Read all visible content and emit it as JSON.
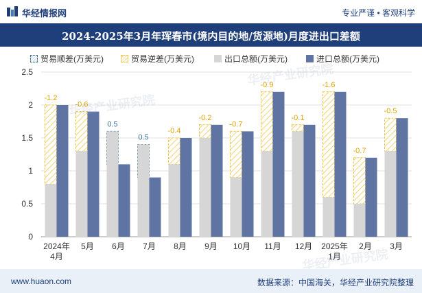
{
  "header": {
    "brand": "华经情报网",
    "tagline": "专业严谨 • 客观科学"
  },
  "title": "2024-2025年3月年珲春市(境内目的地/货源地)月度进出口差额",
  "legend": {
    "surplus": "贸易顺差(万美元)",
    "deficit": "贸易逆差(万美元)",
    "export": "出口总额(万美元)",
    "import": "进口总额(万美元)"
  },
  "watermark": "华经产业研究院",
  "footer": {
    "site": "www.huaon.com",
    "source": "数据来源：中国海关，华经产业研究院整理"
  },
  "colors": {
    "export": "#d6d6d6",
    "import": "#5f74a3",
    "surplus": "#3d6e96",
    "deficit": "#f0c23a",
    "titlebar": "#1f3f7a"
  },
  "chart_data": {
    "type": "bar",
    "categories": [
      "2024年\n4月",
      "5月",
      "6月",
      "7月",
      "8月",
      "9月",
      "10月",
      "11月",
      "12月",
      "2025年\n1月",
      "2月",
      "3月"
    ],
    "series": [
      {
        "name": "出口总额(万美元)",
        "values": [
          0.8,
          1.3,
          1.6,
          1.4,
          1.1,
          1.5,
          0.9,
          1.3,
          1.6,
          0.6,
          0.5,
          1.3
        ]
      },
      {
        "name": "进口总额(万美元)",
        "values": [
          2.0,
          1.9,
          1.1,
          0.9,
          1.5,
          1.7,
          1.6,
          2.2,
          1.7,
          2.2,
          1.2,
          1.8
        ]
      }
    ],
    "balance_labels": [
      "-1.2",
      "-0.6",
      "0.5",
      "0.5",
      "-0.4",
      "-0.2",
      "-0.7",
      "-0.9",
      "-0.1",
      "-1.6",
      "-0.7",
      "-0.5"
    ],
    "yticks": [
      "0",
      "0.5",
      "1",
      "1.5",
      "2",
      "2.5"
    ],
    "ylim": [
      0,
      2.5
    ],
    "grid": true,
    "legend_position": "top"
  }
}
